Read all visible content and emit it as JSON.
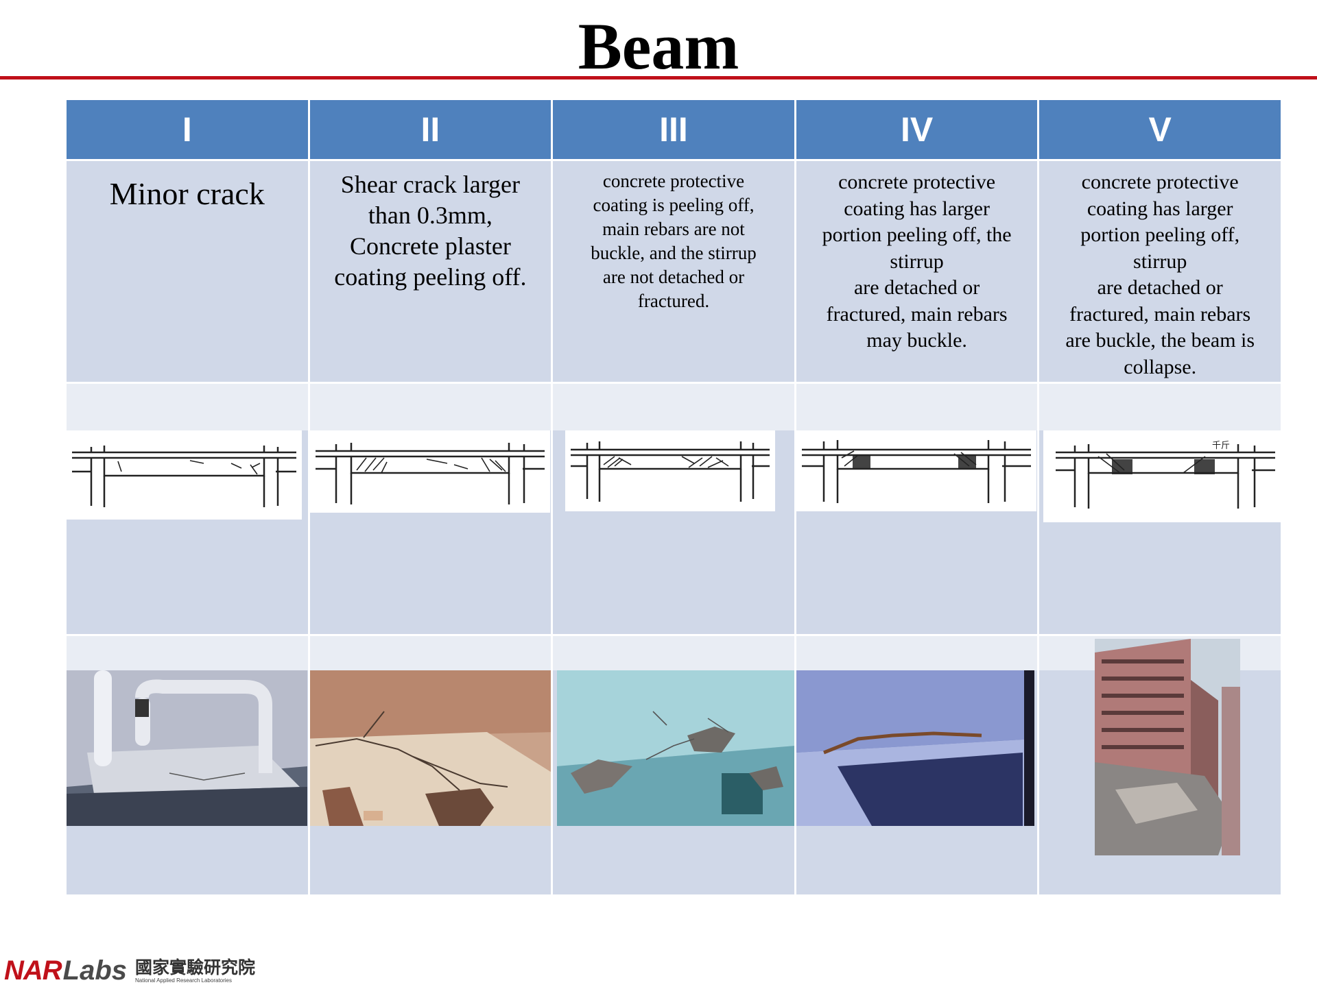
{
  "page": {
    "title": "Beam"
  },
  "columns": [
    {
      "header": "I",
      "description": "Minor crack"
    },
    {
      "header": "II",
      "description": "Shear crack larger\nthan 0.3mm,\nConcrete plaster\ncoating peeling off."
    },
    {
      "header": "III",
      "description": "concrete protective\ncoating is peeling off,\nmain rebars are not\nbuckle, and the stirrup\nare not detached or\nfractured."
    },
    {
      "header": "IV",
      "description": "concrete protective\ncoating has larger\nportion peeling off, the\nstirrup\nare detached or\nfractured, main rebars\nmay buckle."
    },
    {
      "header": "V",
      "description": "concrete protective\ncoating has larger\nportion peeling off,\nstirrup\nare detached or\nfractured, main rebars\nare buckle, the beam is\ncollapse."
    }
  ],
  "sketch_labels": {
    "col5": "千斤"
  },
  "logo": {
    "brand_a": "NAR",
    "brand_b": "Labs",
    "name_cn": "國家實驗研究院",
    "name_en": "National Applied Research Laboratories"
  },
  "colors": {
    "header_bg": "#4f81bd",
    "cell_bg": "#d0d8e8",
    "rule": "#c0111a",
    "brand_red": "#c0111a"
  }
}
